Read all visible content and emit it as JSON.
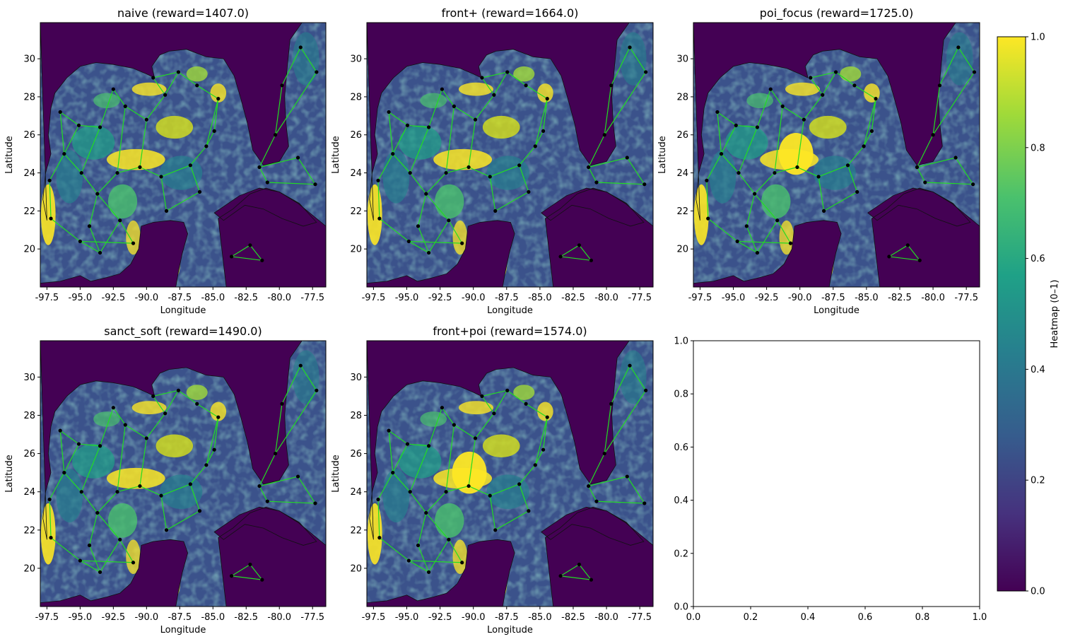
{
  "chart_data": {
    "type": "heatmap",
    "figure_layout": "2 rows x 3 columns of map panels with a shared vertical colorbar",
    "panels": [
      {
        "title": "naive (reward=1407.0)",
        "xlabel": "Longitude",
        "ylabel": "Latitude",
        "xlim": [
          -98.0,
          -76.5
        ],
        "ylim": [
          18.0,
          31.9
        ],
        "has_map": true
      },
      {
        "title": "front+ (reward=1664.0)",
        "xlabel": "Longitude",
        "ylabel": "Latitude",
        "xlim": [
          -98.0,
          -76.5
        ],
        "ylim": [
          18.0,
          31.9
        ],
        "has_map": true
      },
      {
        "title": "poi_focus (reward=1725.0)",
        "xlabel": "Longitude",
        "ylabel": "Latitude",
        "xlim": [
          -98.0,
          -76.5
        ],
        "ylim": [
          18.0,
          31.9
        ],
        "has_map": true
      },
      {
        "title": "sanct_soft (reward=1490.0)",
        "xlabel": "Longitude",
        "ylabel": "Latitude",
        "xlim": [
          -98.0,
          -76.5
        ],
        "ylim": [
          18.0,
          31.9
        ],
        "has_map": true
      },
      {
        "title": "front+poi (reward=1574.0)",
        "xlabel": "Longitude",
        "ylabel": "Latitude",
        "xlim": [
          -98.0,
          -76.5
        ],
        "ylim": [
          18.0,
          31.9
        ],
        "has_map": true
      },
      {
        "title": "",
        "xlabel": "",
        "ylabel": "",
        "xlim": [
          0,
          1
        ],
        "ylim": [
          0,
          1
        ],
        "has_map": false
      }
    ],
    "map_x_ticks": [
      "-97.5",
      "-95.0",
      "-92.5",
      "-90.0",
      "-87.5",
      "-85.0",
      "-82.5",
      "-80.0",
      "-77.5"
    ],
    "map_x_tick_values": [
      -97.5,
      -95.0,
      -92.5,
      -90.0,
      -87.5,
      -85.0,
      -82.5,
      -80.0,
      -77.5
    ],
    "map_y_ticks": [
      "20",
      "22",
      "24",
      "26",
      "28",
      "30"
    ],
    "map_y_tick_values": [
      20,
      22,
      24,
      26,
      28,
      30
    ],
    "empty_ticks": [
      "0.0",
      "0.2",
      "0.4",
      "0.6",
      "0.8",
      "1.0"
    ],
    "empty_tick_values": [
      0.0,
      0.2,
      0.4,
      0.6,
      0.8,
      1.0
    ],
    "colorbar": {
      "label": "Heatmap (0–1)",
      "range": [
        0,
        1
      ],
      "ticks": [
        "0.0",
        "0.2",
        "0.4",
        "0.6",
        "0.8",
        "1.0"
      ],
      "tick_values": [
        0.0,
        0.2,
        0.4,
        0.6,
        0.8,
        1.0
      ],
      "colormap": "viridis"
    },
    "colors": {
      "colormap_stops": [
        "#440154",
        "#46327e",
        "#365c8d",
        "#277f8e",
        "#1fa187",
        "#4ac16d",
        "#a0da39",
        "#fde725"
      ],
      "land": "#440154",
      "route_line": "#22dd22",
      "waypoint": "#000000"
    }
  }
}
